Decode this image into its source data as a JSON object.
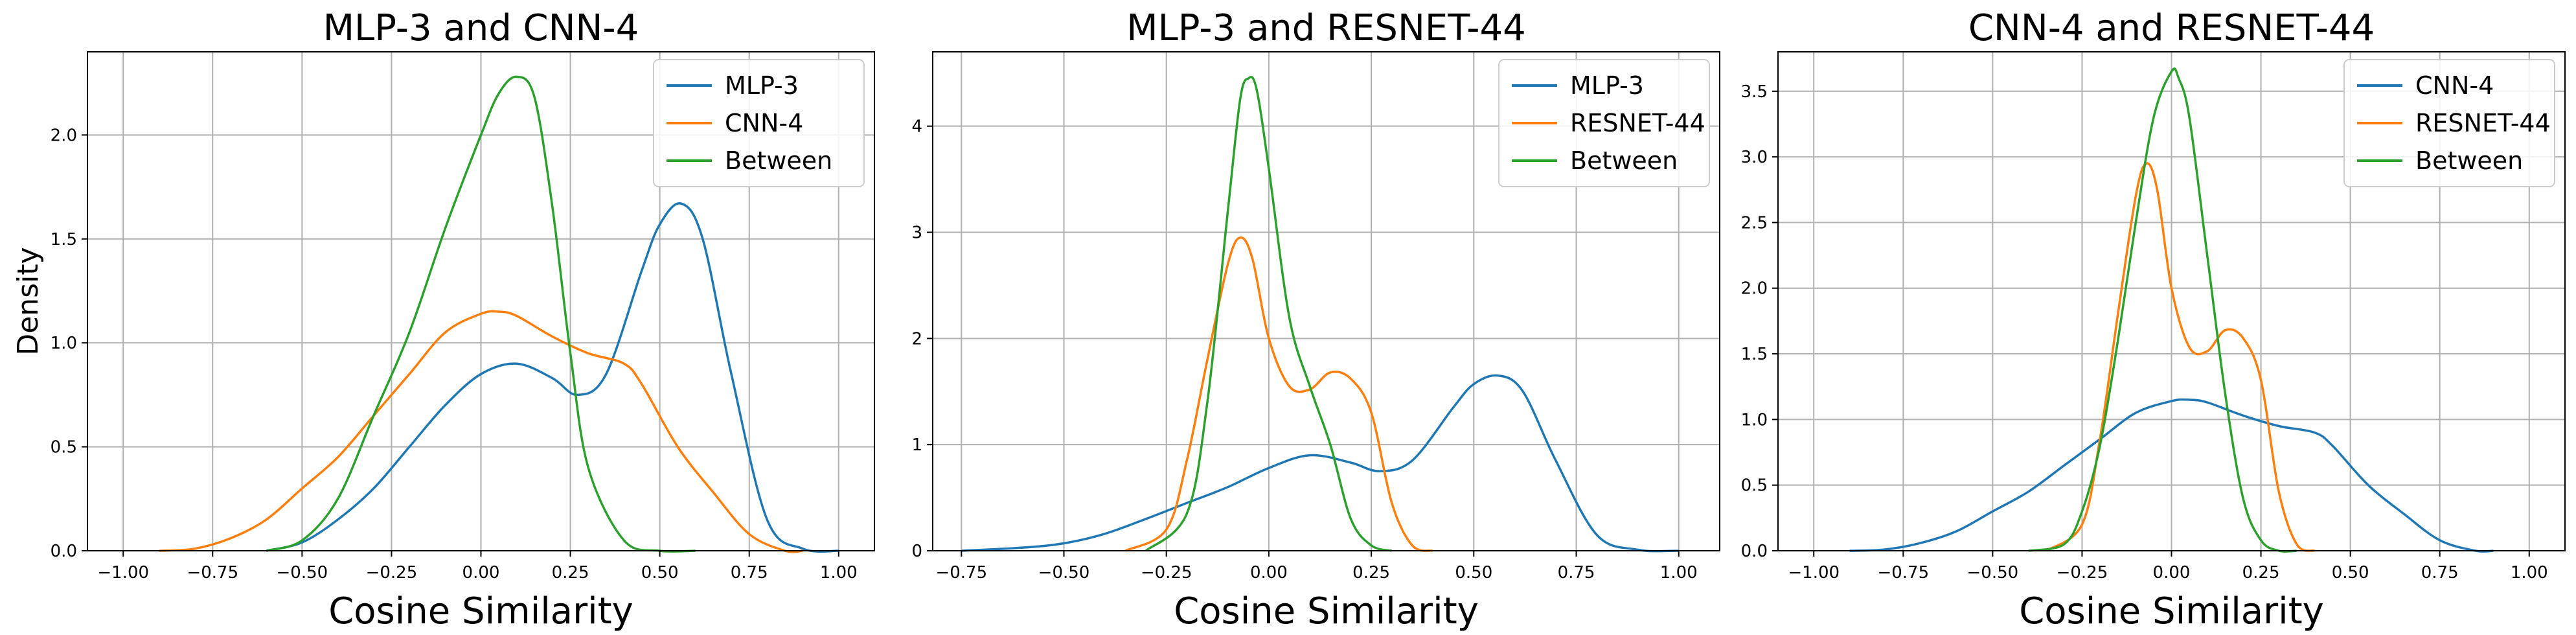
{
  "chart_data": [
    {
      "type": "line",
      "title": "MLP-3 and CNN-4",
      "xlabel": "Cosine Similarity",
      "ylabel": "Density",
      "xlim": [
        -1.1,
        1.1
      ],
      "ylim": [
        0,
        2.4
      ],
      "xticks": [
        -1.0,
        -0.75,
        -0.5,
        -0.25,
        0.0,
        0.25,
        0.5,
        0.75,
        1.0
      ],
      "xtick_labels": [
        "−1.00",
        "−0.75",
        "−0.50",
        "−0.25",
        "0.00",
        "0.25",
        "0.50",
        "0.75",
        "1.00"
      ],
      "yticks": [
        0.0,
        0.5,
        1.0,
        1.5,
        2.0
      ],
      "ytick_labels": [
        "0.0",
        "0.5",
        "1.0",
        "1.5",
        "2.0"
      ],
      "grid": true,
      "legend_position": "upper right",
      "series": [
        {
          "name": "MLP-3",
          "color": "#1f77b4",
          "x": [
            -0.6,
            -0.5,
            -0.4,
            -0.3,
            -0.2,
            -0.1,
            0.0,
            0.1,
            0.2,
            0.27,
            0.35,
            0.45,
            0.5,
            0.56,
            0.62,
            0.7,
            0.8,
            0.9,
            1.0
          ],
          "y": [
            0.0,
            0.04,
            0.15,
            0.3,
            0.5,
            0.7,
            0.85,
            0.9,
            0.83,
            0.75,
            0.85,
            1.35,
            1.57,
            1.67,
            1.5,
            0.85,
            0.15,
            0.01,
            0.0
          ]
        },
        {
          "name": "CNN-4",
          "color": "#ff7f0e",
          "x": [
            -0.9,
            -0.8,
            -0.7,
            -0.6,
            -0.5,
            -0.4,
            -0.3,
            -0.2,
            -0.1,
            0.0,
            0.05,
            0.1,
            0.2,
            0.3,
            0.4,
            0.45,
            0.55,
            0.65,
            0.75,
            0.85,
            0.9
          ],
          "y": [
            0.0,
            0.01,
            0.06,
            0.15,
            0.3,
            0.45,
            0.65,
            0.85,
            1.05,
            1.14,
            1.15,
            1.13,
            1.03,
            0.95,
            0.9,
            0.8,
            0.5,
            0.28,
            0.08,
            0.0,
            0.0
          ]
        },
        {
          "name": "Between",
          "color": "#2ca02c",
          "x": [
            -0.6,
            -0.5,
            -0.4,
            -0.3,
            -0.2,
            -0.1,
            0.0,
            0.05,
            0.1,
            0.15,
            0.2,
            0.25,
            0.3,
            0.4,
            0.5,
            0.6
          ],
          "y": [
            0.0,
            0.05,
            0.25,
            0.65,
            1.05,
            1.55,
            2.0,
            2.2,
            2.28,
            2.18,
            1.65,
            0.95,
            0.4,
            0.05,
            0.0,
            0.0
          ]
        }
      ]
    },
    {
      "type": "line",
      "title": "MLP-3 and RESNET-44",
      "xlabel": "Cosine Similarity",
      "ylabel": "",
      "xlim": [
        -0.82,
        1.1
      ],
      "ylim": [
        0,
        4.7
      ],
      "xticks": [
        -0.75,
        -0.5,
        -0.25,
        0.0,
        0.25,
        0.5,
        0.75,
        1.0
      ],
      "xtick_labels": [
        "−0.75",
        "−0.50",
        "−0.25",
        "0.00",
        "0.25",
        "0.50",
        "0.75",
        "1.00"
      ],
      "yticks": [
        0,
        1,
        2,
        3,
        4
      ],
      "ytick_labels": [
        "0",
        "1",
        "2",
        "3",
        "4"
      ],
      "grid": true,
      "legend_position": "upper right",
      "series": [
        {
          "name": "MLP-3",
          "color": "#1f77b4",
          "x": [
            -0.75,
            -0.6,
            -0.5,
            -0.4,
            -0.3,
            -0.2,
            -0.1,
            0.0,
            0.1,
            0.2,
            0.27,
            0.35,
            0.45,
            0.5,
            0.56,
            0.62,
            0.7,
            0.8,
            0.9,
            1.0
          ],
          "y": [
            0.0,
            0.03,
            0.07,
            0.16,
            0.3,
            0.45,
            0.6,
            0.78,
            0.9,
            0.83,
            0.75,
            0.85,
            1.35,
            1.57,
            1.65,
            1.5,
            0.85,
            0.15,
            0.01,
            0.0
          ]
        },
        {
          "name": "RESNET-44",
          "color": "#ff7f0e",
          "x": [
            -0.35,
            -0.25,
            -0.2,
            -0.15,
            -0.1,
            -0.07,
            -0.04,
            0.0,
            0.05,
            0.1,
            0.15,
            0.2,
            0.25,
            0.3,
            0.35,
            0.4
          ],
          "y": [
            0.0,
            0.2,
            0.85,
            1.8,
            2.7,
            2.95,
            2.75,
            2.0,
            1.55,
            1.52,
            1.68,
            1.62,
            1.3,
            0.45,
            0.05,
            0.0
          ]
        },
        {
          "name": "Between",
          "color": "#2ca02c",
          "x": [
            -0.3,
            -0.2,
            -0.15,
            -0.1,
            -0.07,
            -0.05,
            -0.03,
            0.0,
            0.05,
            0.1,
            0.15,
            0.2,
            0.25,
            0.3
          ],
          "y": [
            0.0,
            0.35,
            1.4,
            3.2,
            4.25,
            4.45,
            4.35,
            3.6,
            2.2,
            1.55,
            1.0,
            0.3,
            0.05,
            0.0
          ]
        }
      ]
    },
    {
      "type": "line",
      "title": "CNN-4 and RESNET-44",
      "xlabel": "Cosine Similarity",
      "ylabel": "",
      "xlim": [
        -1.1,
        1.1
      ],
      "ylim": [
        0,
        3.8
      ],
      "xticks": [
        -1.0,
        -0.75,
        -0.5,
        -0.25,
        0.0,
        0.25,
        0.5,
        0.75,
        1.0
      ],
      "xtick_labels": [
        "−1.00",
        "−0.75",
        "−0.50",
        "−0.25",
        "0.00",
        "0.25",
        "0.50",
        "0.75",
        "1.00"
      ],
      "yticks": [
        0.0,
        0.5,
        1.0,
        1.5,
        2.0,
        2.5,
        3.0,
        3.5
      ],
      "ytick_labels": [
        "0.0",
        "0.5",
        "1.0",
        "1.5",
        "2.0",
        "2.5",
        "3.0",
        "3.5"
      ],
      "grid": true,
      "legend_position": "upper right",
      "series": [
        {
          "name": "CNN-4",
          "color": "#1f77b4",
          "x": [
            -0.9,
            -0.8,
            -0.7,
            -0.6,
            -0.5,
            -0.4,
            -0.3,
            -0.2,
            -0.1,
            0.0,
            0.05,
            0.1,
            0.2,
            0.3,
            0.4,
            0.45,
            0.55,
            0.65,
            0.75,
            0.85,
            0.9
          ],
          "y": [
            0.0,
            0.01,
            0.06,
            0.15,
            0.3,
            0.45,
            0.65,
            0.85,
            1.05,
            1.14,
            1.15,
            1.13,
            1.03,
            0.95,
            0.9,
            0.8,
            0.5,
            0.28,
            0.08,
            0.0,
            0.0
          ]
        },
        {
          "name": "RESNET-44",
          "color": "#ff7f0e",
          "x": [
            -0.35,
            -0.25,
            -0.2,
            -0.15,
            -0.1,
            -0.07,
            -0.04,
            0.0,
            0.05,
            0.1,
            0.15,
            0.2,
            0.25,
            0.3,
            0.35,
            0.4
          ],
          "y": [
            0.0,
            0.2,
            0.85,
            1.8,
            2.7,
            2.95,
            2.75,
            2.0,
            1.55,
            1.52,
            1.68,
            1.62,
            1.3,
            0.45,
            0.05,
            0.0
          ]
        },
        {
          "name": "Between",
          "color": "#2ca02c",
          "x": [
            -0.4,
            -0.3,
            -0.25,
            -0.2,
            -0.15,
            -0.1,
            -0.05,
            0.0,
            0.02,
            0.05,
            0.1,
            0.15,
            0.2,
            0.25,
            0.3,
            0.35
          ],
          "y": [
            0.0,
            0.05,
            0.3,
            0.8,
            1.6,
            2.5,
            3.3,
            3.65,
            3.6,
            3.3,
            2.25,
            1.2,
            0.4,
            0.08,
            0.0,
            0.0
          ]
        }
      ]
    }
  ]
}
